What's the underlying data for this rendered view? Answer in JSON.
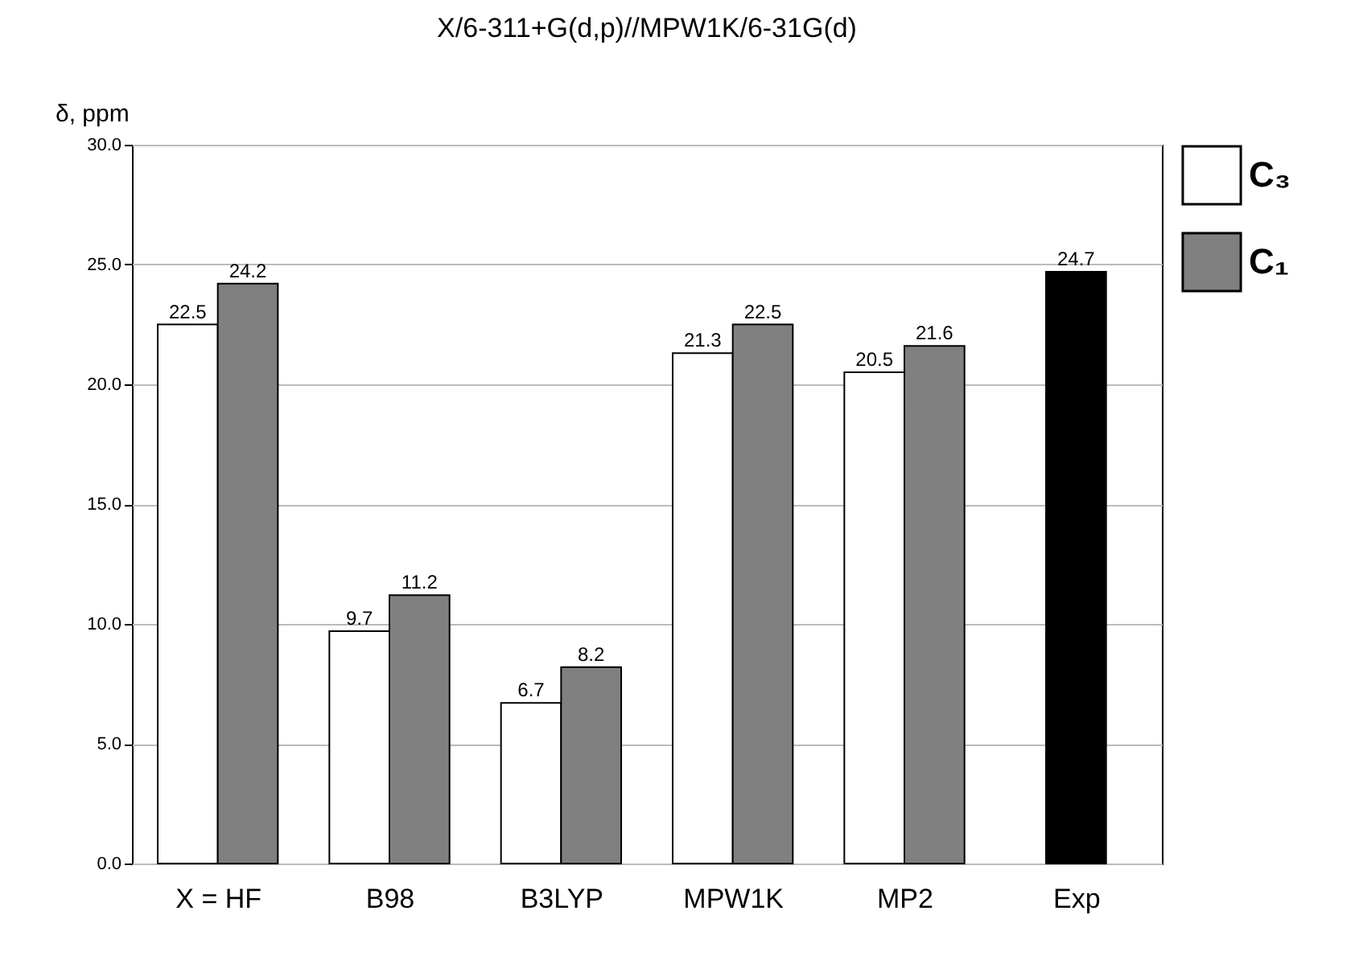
{
  "chart_data": {
    "type": "bar",
    "title": "X/6-311+G(d,p)//MPW1K/6-31G(d)",
    "ylabel": "δ, ppm",
    "categories": [
      "X = HF",
      "B98",
      "B3LYP",
      "MPW1K",
      "MP2",
      "Exp"
    ],
    "series": [
      {
        "name": "C₃",
        "color": "#ffffff",
        "values": [
          22.5,
          9.7,
          6.7,
          21.3,
          20.5,
          null
        ]
      },
      {
        "name": "C₁",
        "color": "#808080",
        "values": [
          24.2,
          11.2,
          8.2,
          22.5,
          21.6,
          null
        ]
      },
      {
        "color": "#000000",
        "values": [
          null,
          null,
          null,
          null,
          null,
          24.7
        ]
      }
    ],
    "ylim": [
      0,
      30
    ],
    "yticks": [
      {
        "value": 0,
        "label": "0.0"
      },
      {
        "value": 5,
        "label": "5.0"
      },
      {
        "value": 10,
        "label": "10.0"
      },
      {
        "value": 15,
        "label": "15.0"
      },
      {
        "value": 20,
        "label": "20.0"
      },
      {
        "value": 25,
        "label": "25.0"
      },
      {
        "value": 30,
        "label": "30.0"
      }
    ],
    "grid": "y",
    "legend": "right",
    "data_labels": true
  }
}
